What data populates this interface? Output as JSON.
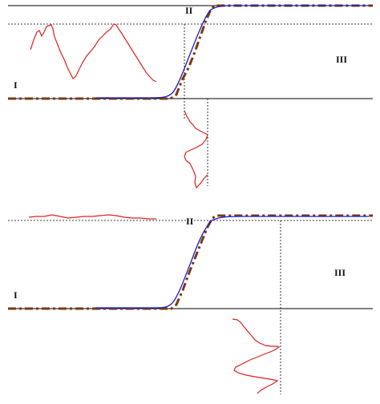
{
  "colors": {
    "axis": "#000000",
    "guide": "#000000",
    "profile": "#e02020",
    "fit_curve": "#1a1ad0",
    "step_model": "#7a3a10"
  },
  "panels": [
    {
      "region_labels": {
        "left": "I",
        "middle": "II",
        "right": "III"
      }
    },
    {
      "region_labels": {
        "left": "I",
        "middle": "II",
        "right": "III"
      }
    }
  ]
}
